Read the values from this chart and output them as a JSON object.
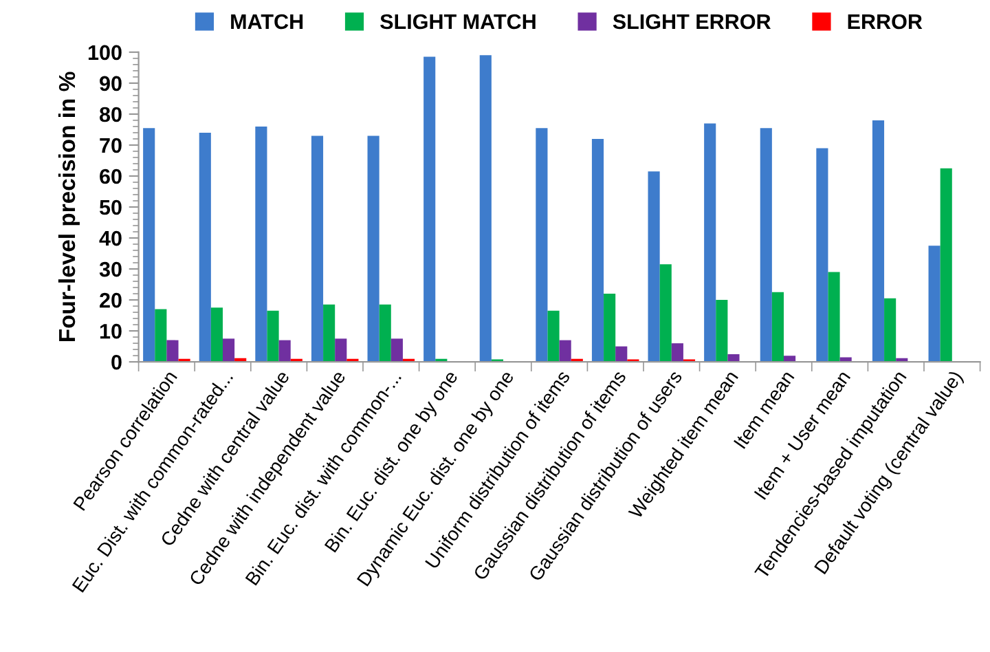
{
  "chart_data": {
    "type": "bar",
    "ylabel": "Four-level precision in %",
    "categories": [
      "Pearson correlation",
      "Euc. Dist. with common-rated...",
      "Cedne with central value",
      "Cedne with independent value",
      "Bin. Euc. dist. with common-...",
      "Bin. Euc. dist. one by one",
      "Dynamic Euc. dist. one by one",
      "Uniform distribution of items",
      "Gaussian distribution of items",
      "Gaussian distribution of users",
      "Weighted item mean",
      "Item mean",
      "Item + User mean",
      "Tendencies-based imputation",
      "Default voting (central value)"
    ],
    "series": [
      {
        "name": "MATCH",
        "color": "#3e7ccc",
        "values": [
          75.5,
          74,
          76,
          73,
          73,
          98.5,
          99,
          75.5,
          72,
          61.5,
          77,
          75.5,
          69,
          78,
          37.5
        ]
      },
      {
        "name": "SLIGHT MATCH",
        "color": "#00b050",
        "values": [
          17,
          17.5,
          16.5,
          18.5,
          18.5,
          1,
          0.8,
          16.5,
          22,
          31.5,
          20,
          22.5,
          29,
          20.5,
          62.5
        ]
      },
      {
        "name": "SLIGHT ERROR",
        "color": "#7030a0",
        "values": [
          7,
          7.5,
          7,
          7.5,
          7.5,
          null,
          null,
          7,
          5,
          6,
          2.5,
          2,
          1.5,
          1.2,
          0
        ]
      },
      {
        "name": "ERROR",
        "color": "#ff0000",
        "values": [
          1,
          1.2,
          1,
          1,
          1,
          0,
          0,
          1,
          0.8,
          0.8,
          null,
          0,
          0,
          0,
          0
        ]
      }
    ],
    "ylim": [
      0,
      100
    ],
    "yticks": [
      0,
      10,
      20,
      30,
      40,
      50,
      60,
      70,
      80,
      90,
      100
    ],
    "grid": false,
    "legend": "top"
  }
}
